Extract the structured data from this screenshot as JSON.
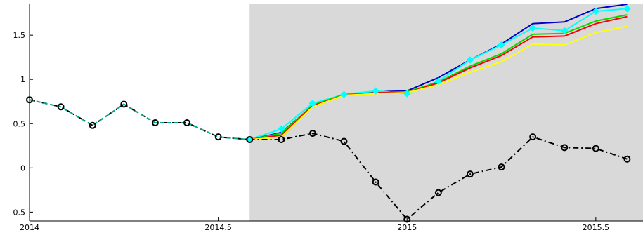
{
  "chart_data": {
    "type": "line",
    "title": "",
    "xlabel": "",
    "ylabel": "",
    "xlim": [
      2014,
      2015.625
    ],
    "ylim": [
      -0.6,
      1.85
    ],
    "grid": false,
    "x_ticks": [
      2014,
      2014.5,
      2015,
      2015.5
    ],
    "x_tick_labels": [
      "2014",
      "2014.5",
      "2015",
      "2015.5"
    ],
    "y_ticks": [
      -0.5,
      0,
      0.5,
      1,
      1.5
    ],
    "y_tick_labels": [
      "-0.5",
      "0",
      "0.5",
      "1",
      "1.5"
    ],
    "shaded_region": {
      "x": [
        2014.583,
        2015.625
      ],
      "color": "#d9d9d9"
    },
    "series": [
      {
        "color": "#000000",
        "style": "dash-dot",
        "marker": "circle",
        "x": [
          2014.0,
          2014.083,
          2014.167,
          2014.25,
          2014.333,
          2014.417,
          2014.5,
          2014.583,
          2014.667,
          2014.75,
          2014.833,
          2014.917,
          2015.0,
          2015.083,
          2015.167,
          2015.25,
          2015.333,
          2015.417,
          2015.5,
          2015.583
        ],
        "values": [
          0.77,
          0.69,
          0.48,
          0.72,
          0.51,
          0.51,
          0.35,
          0.32,
          0.32,
          0.39,
          0.3,
          -0.16,
          -0.58,
          -0.28,
          -0.07,
          0.01,
          0.35,
          0.23,
          0.22,
          0.1
        ]
      },
      {
        "color": "#00aa88",
        "style": "dashed",
        "marker": "none",
        "x": [
          2014.0,
          2014.083,
          2014.167,
          2014.25,
          2014.333,
          2014.417,
          2014.5,
          2014.583
        ],
        "values": [
          0.77,
          0.69,
          0.48,
          0.72,
          0.51,
          0.51,
          0.35,
          0.32
        ]
      },
      {
        "color": "#0000cc",
        "style": "solid",
        "marker": "none",
        "x": [
          2014.583,
          2014.667,
          2014.75,
          2014.833,
          2014.917,
          2015.0,
          2015.083,
          2015.167,
          2015.25,
          2015.333,
          2015.417,
          2015.5,
          2015.583
        ],
        "values": [
          0.32,
          0.4,
          0.7,
          0.83,
          0.86,
          0.87,
          1.02,
          1.22,
          1.4,
          1.63,
          1.65,
          1.8,
          1.85
        ]
      },
      {
        "color": "#00ffff",
        "style": "solid",
        "marker": "diamond",
        "x": [
          2014.583,
          2014.667,
          2014.75,
          2014.833,
          2014.917,
          2015.0,
          2015.083,
          2015.167,
          2015.25,
          2015.333,
          2015.417,
          2015.5,
          2015.583
        ],
        "values": [
          0.32,
          0.44,
          0.73,
          0.83,
          0.87,
          0.84,
          0.98,
          1.22,
          1.39,
          1.58,
          1.55,
          1.77,
          1.8
        ]
      },
      {
        "color": "#00dd00",
        "style": "solid",
        "marker": "none",
        "x": [
          2014.583,
          2014.667,
          2014.75,
          2014.833,
          2014.917,
          2015.0,
          2015.083,
          2015.167,
          2015.25,
          2015.333,
          2015.417,
          2015.5,
          2015.583
        ],
        "values": [
          0.32,
          0.39,
          0.71,
          0.83,
          0.85,
          0.86,
          0.97,
          1.15,
          1.29,
          1.51,
          1.52,
          1.66,
          1.73
        ]
      },
      {
        "color": "#ff0000",
        "style": "solid",
        "marker": "none",
        "x": [
          2014.583,
          2014.667,
          2014.75,
          2014.833,
          2014.917,
          2015.0,
          2015.083,
          2015.167,
          2015.25,
          2015.333,
          2015.417,
          2015.5,
          2015.583
        ],
        "values": [
          0.32,
          0.37,
          0.7,
          0.82,
          0.85,
          0.85,
          0.96,
          1.13,
          1.27,
          1.48,
          1.49,
          1.63,
          1.71
        ]
      },
      {
        "color": "#ffff00",
        "style": "solid",
        "marker": "none",
        "x": [
          2014.583,
          2014.667,
          2014.75,
          2014.833,
          2014.917,
          2015.0,
          2015.083,
          2015.167,
          2015.25,
          2015.333,
          2015.417,
          2015.5,
          2015.583
        ],
        "values": [
          0.32,
          0.35,
          0.69,
          0.82,
          0.84,
          0.85,
          0.94,
          1.08,
          1.2,
          1.4,
          1.39,
          1.53,
          1.6
        ]
      }
    ]
  }
}
